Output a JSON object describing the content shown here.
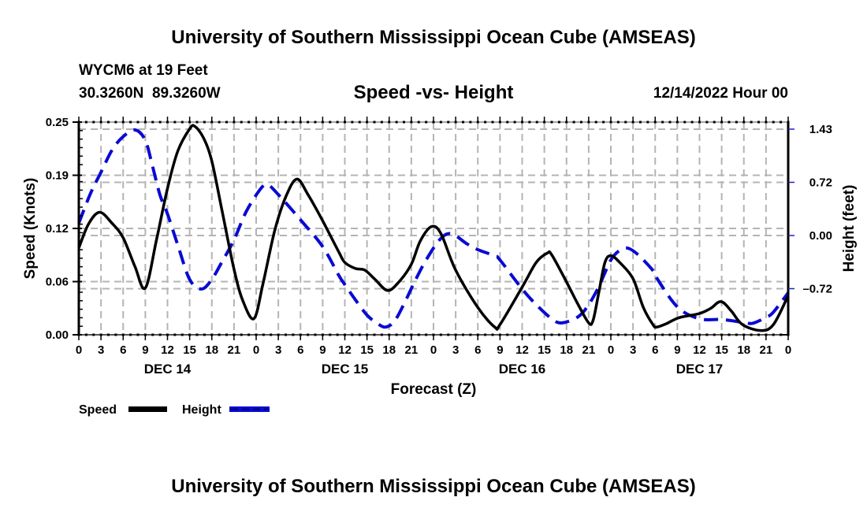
{
  "header": {
    "title": "University of Southern Mississippi Ocean Cube (AMSEAS)",
    "station": "WYCM6 at 19 Feet",
    "coords": "30.3260N  89.3260W",
    "datetime": "12/14/2022 Hour 00"
  },
  "footer": {
    "title": "University of Southern Mississippi Ocean Cube (AMSEAS)"
  },
  "chart_data": {
    "type": "line",
    "title": "Speed -vs- Height",
    "xlabel": "Forecast (Z)",
    "ylabel": "Speed (Knots)",
    "y2label": "Height (feet)",
    "xlim": [
      0,
      96
    ],
    "x_tick_labels": [
      "0",
      "3",
      "6",
      "9",
      "12",
      "15",
      "18",
      "21",
      "0",
      "3",
      "6",
      "9",
      "12",
      "15",
      "18",
      "21",
      "0",
      "3",
      "6",
      "9",
      "12",
      "15",
      "18",
      "21",
      "0",
      "3",
      "6",
      "9",
      "12",
      "15",
      "18",
      "21",
      "0"
    ],
    "date_labels": [
      {
        "label": "DEC 14",
        "hour": 12
      },
      {
        "label": "DEC 15",
        "hour": 36
      },
      {
        "label": "DEC 16",
        "hour": 60
      },
      {
        "label": "DEC 17",
        "hour": 84
      }
    ],
    "ylim": [
      0,
      0.25
    ],
    "y_ticks": [
      {
        "value": 0,
        "label": "0.00"
      },
      {
        "value": 0.0625,
        "label": "0.06"
      },
      {
        "value": 0.125,
        "label": "0.12"
      },
      {
        "value": 0.1875,
        "label": "0.19"
      },
      {
        "value": 0.25,
        "label": "0.25"
      }
    ],
    "y2lim": [
      -1.335,
      1.525
    ],
    "y2_ticks": [
      {
        "value": 1.43,
        "label": "1.43"
      },
      {
        "value": 0.715,
        "label": "0.72"
      },
      {
        "value": 0,
        "label": "0.00"
      },
      {
        "value": -0.715,
        "label": "–0.72"
      }
    ],
    "grid": true,
    "legend": {
      "position": "bottom-left",
      "entries": [
        {
          "name": "Speed",
          "color": "#000000",
          "style": "solid"
        },
        {
          "name": "Height",
          "color": "#0a0ad2",
          "style": "dashed"
        }
      ]
    },
    "series": [
      {
        "name": "Speed",
        "axis": "left",
        "units": "knots",
        "color": "#000000",
        "style": "solid",
        "x": [
          0,
          1.3,
          2.8,
          4.5,
          6,
          7.6,
          9,
          10.5,
          12,
          13.4,
          15,
          15.7,
          16.9,
          18,
          19.4,
          21,
          22.2,
          23.7,
          24.9,
          26.5,
          28,
          29.5,
          31,
          33,
          35.2,
          36,
          37.4,
          38.7,
          40.1,
          41.8,
          43.4,
          45,
          46.2,
          47.7,
          49,
          51,
          54,
          56.3,
          57,
          60,
          61.9,
          63.4,
          64,
          66,
          67.6,
          69,
          69.6,
          70.4,
          71.2,
          72,
          73.2,
          75,
          76.4,
          77.7,
          78.2,
          79.5,
          81.2,
          84,
          85.5,
          86.9,
          88.3,
          89.8,
          92.3,
          94,
          96
        ],
        "values": [
          0.102,
          0.13,
          0.144,
          0.131,
          0.114,
          0.08,
          0.055,
          0.111,
          0.172,
          0.216,
          0.242,
          0.245,
          0.231,
          0.204,
          0.145,
          0.077,
          0.04,
          0.019,
          0.059,
          0.122,
          0.162,
          0.183,
          0.165,
          0.134,
          0.097,
          0.085,
          0.078,
          0.076,
          0.065,
          0.052,
          0.063,
          0.083,
          0.11,
          0.127,
          0.119,
          0.076,
          0.032,
          0.009,
          0.012,
          0.056,
          0.085,
          0.096,
          0.094,
          0.062,
          0.035,
          0.014,
          0.017,
          0.051,
          0.085,
          0.093,
          0.085,
          0.066,
          0.032,
          0.012,
          0.009,
          0.013,
          0.02,
          0.025,
          0.031,
          0.039,
          0.028,
          0.012,
          0.005,
          0.012,
          0.046
        ]
      },
      {
        "name": "Height",
        "axis": "right",
        "units": "feet",
        "color": "#0a0ad2",
        "style": "dashed",
        "x": [
          0,
          1.6,
          3,
          4.5,
          6,
          7.6,
          9,
          10,
          11,
          12,
          13.4,
          15,
          16.6,
          18,
          19.4,
          21,
          22.7,
          24.7,
          25.6,
          27,
          30,
          33,
          35.2,
          36,
          37.4,
          39,
          40.5,
          41.6,
          42.8,
          44.3,
          45.5,
          47,
          48.9,
          50.4,
          52.5,
          54,
          56.3,
          57,
          60,
          61.9,
          64,
          65.4,
          67.6,
          69,
          70.4,
          72,
          73.2,
          74.3,
          75.7,
          77.7,
          78,
          81,
          84,
          87,
          90,
          91.2,
          93,
          94,
          96
        ],
        "values": [
          0.166,
          0.57,
          0.85,
          1.15,
          1.33,
          1.42,
          1.28,
          0.92,
          0.54,
          0.29,
          -0.13,
          -0.59,
          -0.72,
          -0.59,
          -0.35,
          -0.06,
          0.33,
          0.64,
          0.68,
          0.55,
          0.21,
          -0.15,
          -0.54,
          -0.66,
          -0.86,
          -1.07,
          -1.19,
          -1.23,
          -1.14,
          -0.86,
          -0.61,
          -0.33,
          -0.05,
          0.024,
          -0.11,
          -0.19,
          -0.275,
          -0.33,
          -0.72,
          -0.93,
          -1.12,
          -1.175,
          -1.09,
          -0.93,
          -0.68,
          -0.33,
          -0.2,
          -0.17,
          -0.26,
          -0.47,
          -0.54,
          -0.96,
          -1.12,
          -1.13,
          -1.17,
          -1.18,
          -1.1,
          -1.03,
          -0.77
        ]
      }
    ]
  }
}
